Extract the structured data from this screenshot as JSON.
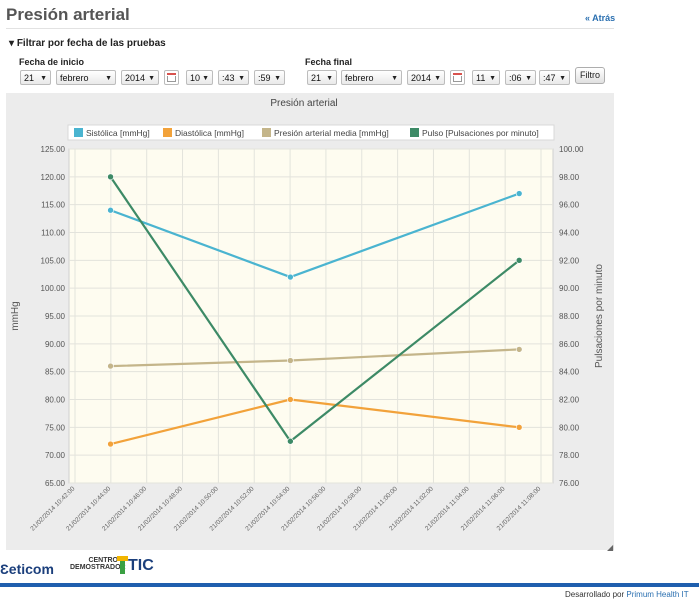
{
  "page": {
    "title": "Presión arterial",
    "back_link": "« Atrás",
    "filter_title": "Filtrar por fecha de las pruebas",
    "filter_toggle": "▾",
    "filter_button": "Filtro"
  },
  "filter": {
    "start": {
      "label": "Fecha de inicio",
      "day": "21",
      "month": "febrero",
      "year": "2014",
      "hour": "10",
      "minute": ":43",
      "second": ":59"
    },
    "end": {
      "label": "Fecha final",
      "day": "21",
      "month": "febrero",
      "year": "2014",
      "hour": "11",
      "minute": ":06",
      "second": ":47"
    }
  },
  "chart_data": {
    "type": "line",
    "title": "Presión arterial",
    "ylabel_left": "mmHg",
    "ylabel_right": "Pulsaciones por minuto",
    "ylim_left": [
      65,
      125
    ],
    "ylim_right": [
      76,
      100
    ],
    "y_ticks_left": [
      "65.00",
      "70.00",
      "75.00",
      "80.00",
      "85.00",
      "90.00",
      "95.00",
      "100.00",
      "105.00",
      "110.00",
      "115.00",
      "120.00",
      "125.00"
    ],
    "y_ticks_right": [
      "76.00",
      "78.00",
      "80.00",
      "82.00",
      "84.00",
      "86.00",
      "88.00",
      "90.00",
      "92.00",
      "94.00",
      "96.00",
      "98.00",
      "100.00"
    ],
    "x_ticks": [
      "21/02/2014 10:42:00",
      "21/02/2014 10:44:00",
      "21/02/2014 10:46:00",
      "21/02/2014 10:48:00",
      "21/02/2014 10:50:00",
      "21/02/2014 10:52:00",
      "21/02/2014 10:54:00",
      "21/02/2014 10:56:00",
      "21/02/2014 10:58:00",
      "21/02/2014 11:00:00",
      "21/02/2014 11:02:00",
      "21/02/2014 11:04:00",
      "21/02/2014 11:06:00",
      "21/02/2014 11:08:00"
    ],
    "x_minutes": [
      0,
      2,
      4,
      6,
      8,
      10,
      12,
      14,
      16,
      18,
      20,
      22,
      24,
      26
    ],
    "x": [
      "21/02/2014 10:43:59",
      "21/02/2014 10:54:01",
      "21/02/2014 11:06:47"
    ],
    "series": [
      {
        "name": "Sistólica [mmHg]",
        "color": "#4ab4d0",
        "axis": "left",
        "values": [
          114,
          102,
          117
        ]
      },
      {
        "name": "Diastólica [mmHg]",
        "color": "#f2a23a",
        "axis": "left",
        "values": [
          72,
          80,
          75
        ]
      },
      {
        "name": "Presión arterial media [mmHg]",
        "color": "#c4b58a",
        "axis": "left",
        "values": [
          86,
          87,
          89
        ]
      },
      {
        "name": "Pulso [Pulsaciones por minuto]",
        "color": "#3d8a66",
        "axis": "right",
        "values": [
          98,
          79,
          92
        ]
      }
    ],
    "legend_position": "top-center",
    "grid": true,
    "plot_background": "#fefcf0"
  },
  "footer": {
    "logo_eticom": "eticom",
    "logo_centro_line1": "CENTRO",
    "logo_centro_line2": "DEMOSTRADOR",
    "logo_tic": "TIC",
    "credit_prefix": "Desarrollado por ",
    "credit_link": "Primum Health IT"
  }
}
